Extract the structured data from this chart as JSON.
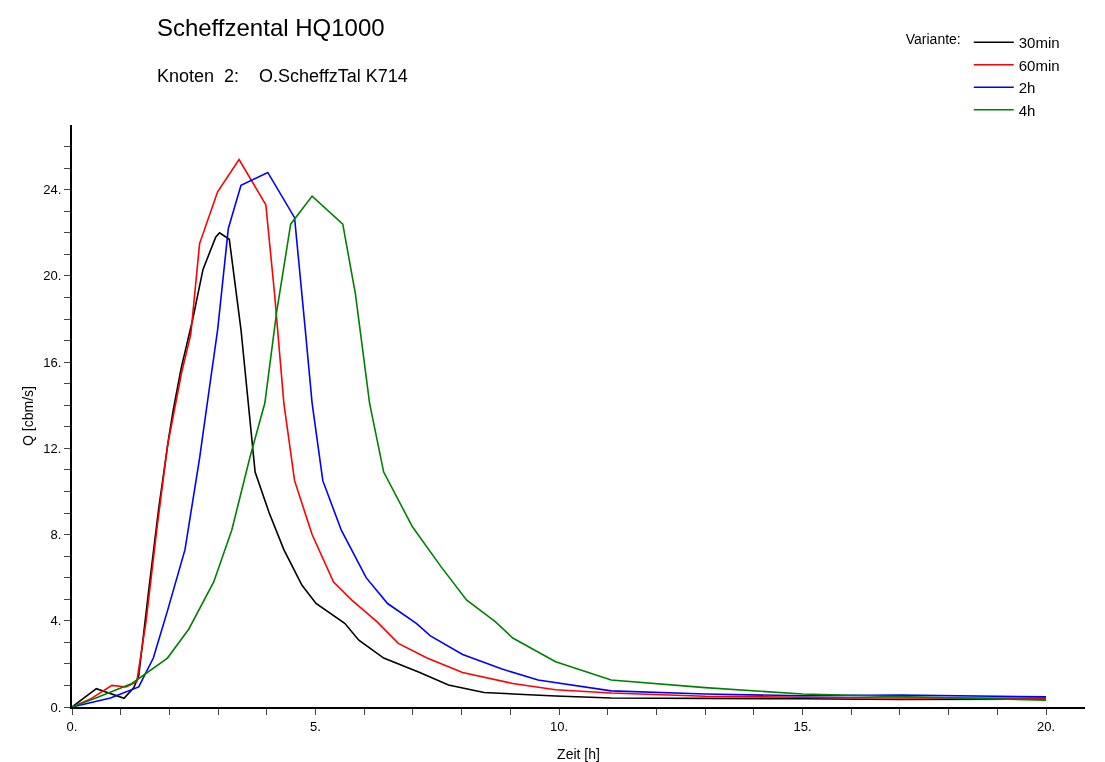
{
  "chart_data": {
    "type": "line",
    "title": "Scheffzental HQ1000",
    "subtitle": "Knoten  2:    O.ScheffzTal K714",
    "xlabel": "Zeit [h]",
    "ylabel": "Q [cbm/s]",
    "legend_title": "Variante:",
    "legend": "top right",
    "grid": false,
    "marker": "none",
    "line_style": "solid",
    "xlim": [
      0,
      20.8
    ],
    "ylim": [
      0,
      27
    ],
    "xticks": [
      {
        "value": 0,
        "label": "0."
      },
      {
        "value": 1,
        "label": null
      },
      {
        "value": 2,
        "label": null
      },
      {
        "value": 3,
        "label": null
      },
      {
        "value": 4,
        "label": null
      },
      {
        "value": 5,
        "label": "5."
      },
      {
        "value": 6,
        "label": null
      },
      {
        "value": 7,
        "label": null
      },
      {
        "value": 8,
        "label": null
      },
      {
        "value": 9,
        "label": null
      },
      {
        "value": 10,
        "label": "10."
      },
      {
        "value": 11,
        "label": null
      },
      {
        "value": 12,
        "label": null
      },
      {
        "value": 13,
        "label": null
      },
      {
        "value": 14,
        "label": null
      },
      {
        "value": 15,
        "label": "15."
      },
      {
        "value": 16,
        "label": null
      },
      {
        "value": 17,
        "label": null
      },
      {
        "value": 18,
        "label": null
      },
      {
        "value": 19,
        "label": null
      },
      {
        "value": 20,
        "label": "20."
      }
    ],
    "yticks": [
      {
        "value": 0,
        "label": "0."
      },
      {
        "value": 1,
        "label": null
      },
      {
        "value": 2,
        "label": null
      },
      {
        "value": 3,
        "label": null
      },
      {
        "value": 4,
        "label": "4."
      },
      {
        "value": 5,
        "label": null
      },
      {
        "value": 6,
        "label": null
      },
      {
        "value": 7,
        "label": null
      },
      {
        "value": 8,
        "label": "8."
      },
      {
        "value": 9,
        "label": null
      },
      {
        "value": 10,
        "label": null
      },
      {
        "value": 11,
        "label": null
      },
      {
        "value": 12,
        "label": "12."
      },
      {
        "value": 13,
        "label": null
      },
      {
        "value": 14,
        "label": null
      },
      {
        "value": 15,
        "label": null
      },
      {
        "value": 16,
        "label": "16."
      },
      {
        "value": 17,
        "label": null
      },
      {
        "value": 18,
        "label": null
      },
      {
        "value": 19,
        "label": null
      },
      {
        "value": 20,
        "label": "20."
      },
      {
        "value": 21,
        "label": null
      },
      {
        "value": 22,
        "label": null
      },
      {
        "value": 23,
        "label": null
      },
      {
        "value": 24,
        "label": "24."
      },
      {
        "value": 25,
        "label": null
      },
      {
        "value": 26,
        "label": null
      }
    ],
    "series": [
      {
        "name": "30min",
        "color": "#000000",
        "x": [
          0,
          0.5,
          1.07,
          1.27,
          1.37,
          1.58,
          1.78,
          1.98,
          2.08,
          2.24,
          2.48,
          2.69,
          2.95,
          3.03,
          3.23,
          3.47,
          3.76,
          4.05,
          4.35,
          4.72,
          5.01,
          5.6,
          5.89,
          6.4,
          7.14,
          7.73,
          8.46,
          9.93,
          11.07,
          13,
          15,
          17,
          20
        ],
        "values": [
          0,
          0.85,
          0.4,
          0.9,
          1.45,
          5.5,
          9.2,
          12.4,
          13.8,
          15.7,
          18,
          20.3,
          21.8,
          22,
          21.7,
          17.5,
          10.9,
          9,
          7.3,
          5.66,
          4.8,
          3.88,
          3.1,
          2.27,
          1.6,
          1.02,
          0.67,
          0.51,
          0.42,
          0.4,
          0.38,
          0.35,
          0.37
        ]
      },
      {
        "name": "60min",
        "color": "#ff0000",
        "x": [
          0,
          0.4,
          0.82,
          1.11,
          1.33,
          1.52,
          1.74,
          1.96,
          2.25,
          2.44,
          2.62,
          2.99,
          3.43,
          3.98,
          4.16,
          4.35,
          4.57,
          4.93,
          5.37,
          5.74,
          6.26,
          6.7,
          7.29,
          8.02,
          9.05,
          9.93,
          11.07,
          13,
          15,
          17,
          20
        ],
        "values": [
          0,
          0.4,
          1,
          0.93,
          1.17,
          3.96,
          8.2,
          12.1,
          15.5,
          17.3,
          21.5,
          23.9,
          25.4,
          23.3,
          19.15,
          14.1,
          10.5,
          8,
          5.8,
          4.97,
          3.96,
          2.95,
          2.27,
          1.6,
          1.09,
          0.8,
          0.65,
          0.5,
          0.45,
          0.42,
          0.42
        ]
      },
      {
        "name": "2h",
        "color": "#0000ff",
        "x": [
          0,
          0.79,
          1.37,
          1.67,
          1.96,
          2.32,
          2.62,
          2.84,
          2.99,
          3.21,
          3.47,
          4.02,
          4.57,
          4.79,
          4.93,
          5.15,
          5.53,
          6.04,
          6.48,
          7.07,
          7.36,
          8.02,
          8.83,
          9.57,
          11.07,
          13,
          15,
          17,
          20
        ],
        "values": [
          0,
          0.42,
          0.93,
          2.27,
          4.46,
          7.3,
          11.55,
          15.1,
          17.5,
          22.2,
          24.2,
          24.8,
          22.7,
          17.5,
          14.1,
          10.5,
          8.2,
          6,
          4.8,
          3.88,
          3.3,
          2.44,
          1.76,
          1.25,
          0.75,
          0.6,
          0.52,
          0.55,
          0.47
        ]
      },
      {
        "name": "4h",
        "color": "#008000",
        "x": [
          0,
          0.49,
          1.23,
          1.96,
          2.4,
          2.91,
          3.28,
          3.65,
          3.96,
          4.2,
          4.49,
          4.93,
          5.56,
          5.82,
          6.11,
          6.4,
          6.99,
          7.58,
          8.1,
          8.69,
          9.05,
          9.93,
          11.07,
          13,
          15,
          17,
          20
        ],
        "values": [
          0,
          0.42,
          1.09,
          2.27,
          3.62,
          5.8,
          8.2,
          11.55,
          14.1,
          18.3,
          22.4,
          23.7,
          22.4,
          19.15,
          14.1,
          10.9,
          8.36,
          6.5,
          4.97,
          3.96,
          3.2,
          2.1,
          1.25,
          0.9,
          0.6,
          0.48,
          0.32
        ]
      }
    ]
  }
}
